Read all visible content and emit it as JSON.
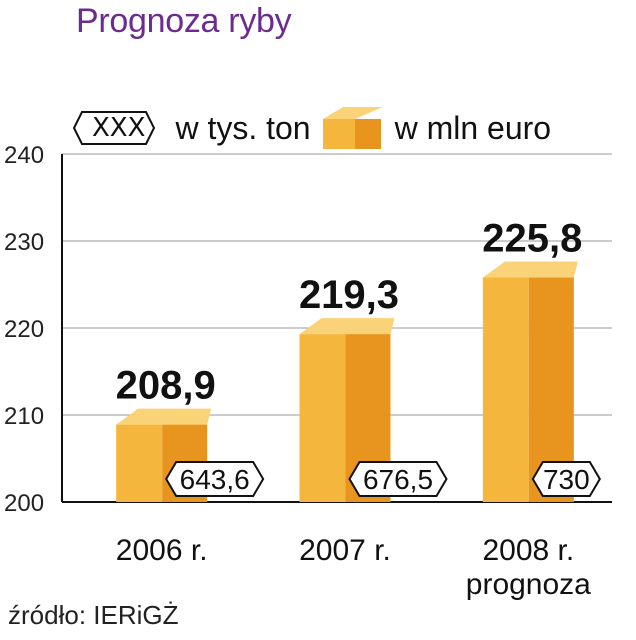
{
  "title": "Prognoza ryby",
  "legend": {
    "tons_symbol": "XXX",
    "tons_label": "w tys. ton",
    "euro_label": "w mln euro"
  },
  "source": "źródło: IERiGŻ",
  "colors": {
    "title": "#6b2c8f",
    "bar_front": "#f4b63d",
    "bar_side": "#e8951f",
    "bar_top": "#fad277"
  },
  "chart_data": {
    "type": "bar",
    "title": "Prognoza ryby",
    "categories": [
      "2006 r.",
      "2007 r.",
      "2008 r."
    ],
    "category_sublabels": [
      "",
      "",
      "prognoza"
    ],
    "series": [
      {
        "name": "w mln euro",
        "values": [
          208.9,
          219.3,
          225.8
        ],
        "labels": [
          "208,9",
          "219,3",
          "225,8"
        ]
      },
      {
        "name": "w tys. ton",
        "values": [
          643.6,
          676.5,
          730
        ],
        "labels": [
          "643,6",
          "676,5",
          "730"
        ]
      }
    ],
    "ylim": [
      200,
      240
    ],
    "yticks": [
      200,
      210,
      220,
      230,
      240
    ],
    "ytick_labels": [
      "200",
      "210",
      "220",
      "230",
      "240"
    ],
    "grid": true,
    "legend_position": "top"
  }
}
